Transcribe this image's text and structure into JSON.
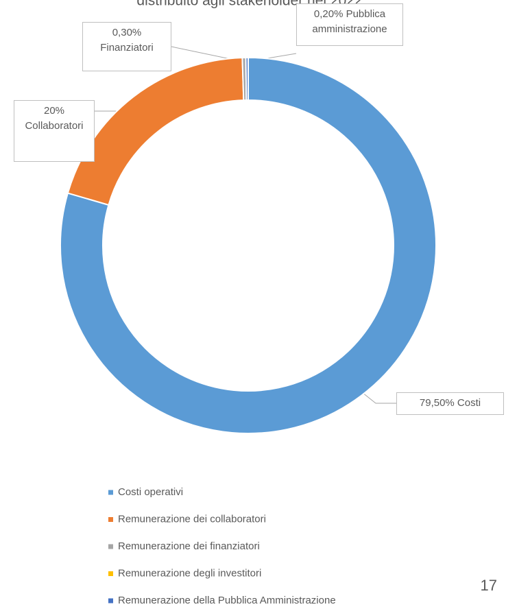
{
  "chart_data": {
    "type": "donut",
    "title": "distribuito agli stakeholder nel 2022",
    "categories": [
      "Costi operativi",
      "Remunerazione dei collaboratori",
      "Remunerazione dei finanziatori",
      "Remunerazione degli investitori",
      "Remunerazione della Pubblica Amministrazione"
    ],
    "values": [
      79.5,
      20,
      0.3,
      0,
      0.2
    ],
    "value_labels": [
      "79,50% Costi",
      "20% Collaboratori",
      "0,30% Finanziatori",
      null,
      "0,20% Pubblica amministrazione"
    ],
    "colors": [
      "#5b9bd5",
      "#ed7d31",
      "#a5a5a5",
      "#ffc000",
      "#4472c4"
    ],
    "legend": "bottom",
    "page_number": "17"
  }
}
